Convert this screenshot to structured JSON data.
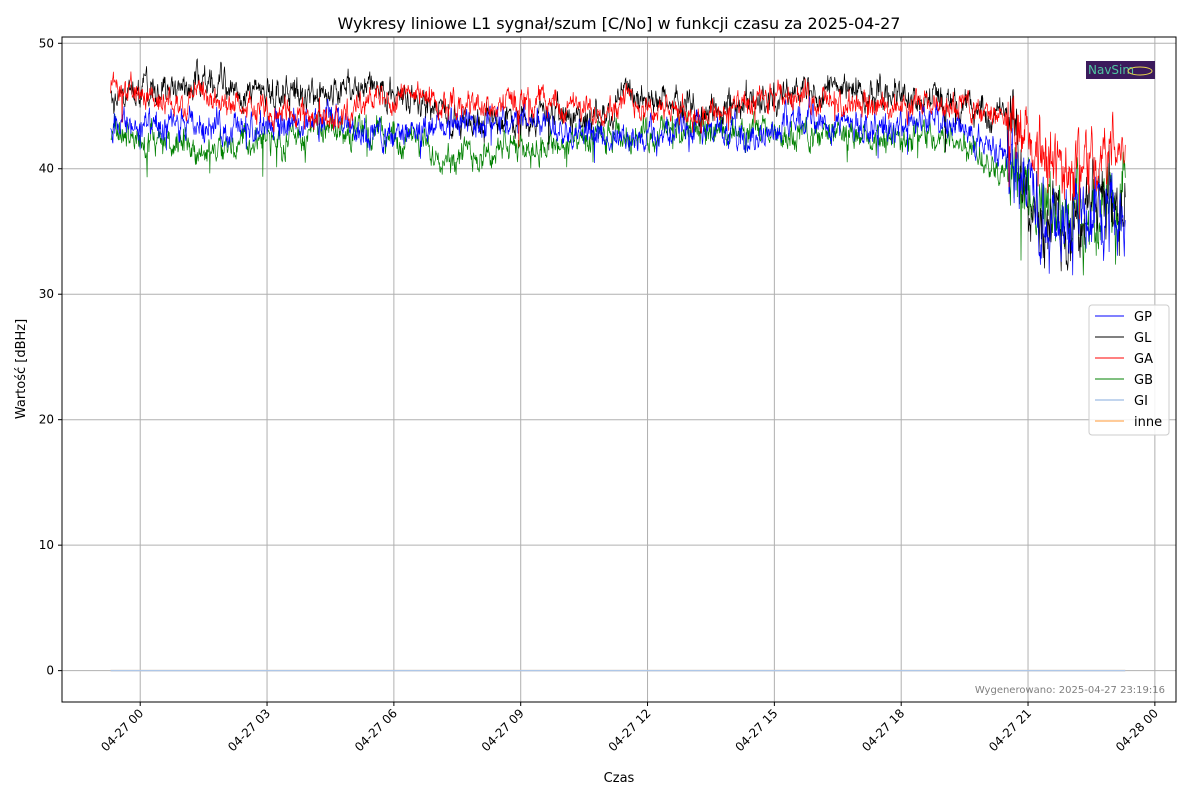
{
  "chart_data": {
    "type": "line",
    "title": "Wykresy liniowe L1 sygnał/szum [C/No] w funkcji czasu za 2025-04-27",
    "xlabel": "Czas",
    "ylabel": "Wartość [dBHz]",
    "x_unit": "hours since 2025-04-27 00:00",
    "xlim": [
      -1.85,
      24.5
    ],
    "ylim": [
      -2.5,
      50.5
    ],
    "grid": true,
    "legend_position": "right",
    "x_ticks": [
      {
        "value": 0,
        "label": "04-27 00"
      },
      {
        "value": 3,
        "label": "04-27 03"
      },
      {
        "value": 6,
        "label": "04-27 06"
      },
      {
        "value": 9,
        "label": "04-27 09"
      },
      {
        "value": 12,
        "label": "04-27 12"
      },
      {
        "value": 15,
        "label": "04-27 15"
      },
      {
        "value": 18,
        "label": "04-27 18"
      },
      {
        "value": 21,
        "label": "04-27 21"
      },
      {
        "value": 24,
        "label": "04-28 00"
      }
    ],
    "y_ticks": [
      {
        "value": 0,
        "label": "0"
      },
      {
        "value": 10,
        "label": "10"
      },
      {
        "value": 20,
        "label": "20"
      },
      {
        "value": 30,
        "label": "30"
      },
      {
        "value": 40,
        "label": "40"
      },
      {
        "value": 50,
        "label": "50"
      }
    ],
    "x": [
      -0.7,
      0.5,
      1.5,
      2.5,
      3.5,
      4.5,
      5.5,
      6.5,
      7.5,
      8.5,
      9.5,
      10.5,
      11.5,
      12.5,
      13.5,
      14.5,
      15.5,
      16.5,
      17.5,
      18.5,
      19.5,
      20.5,
      21.5,
      22.5,
      23.3
    ],
    "series": [
      {
        "name": "GP",
        "color": "#0000ff",
        "noise": 0.9,
        "values": [
          44,
          43,
          43.5,
          43,
          43.5,
          44,
          42.5,
          43,
          43.5,
          44,
          44,
          43,
          42,
          43,
          43,
          42.5,
          44,
          44,
          43,
          44,
          43,
          41,
          36,
          37,
          38
        ]
      },
      {
        "name": "GL",
        "color": "#000000",
        "noise": 0.9,
        "values": [
          45.5,
          46.5,
          47,
          46.5,
          46,
          46,
          46.5,
          45.5,
          44,
          44,
          44.5,
          44,
          45.5,
          45.5,
          44.5,
          45.5,
          46,
          46.5,
          46,
          45.5,
          45,
          44,
          35,
          37,
          38
        ]
      },
      {
        "name": "GA",
        "color": "#ff0000",
        "noise": 0.8,
        "values": [
          46.5,
          45.5,
          45.5,
          45,
          44.5,
          44,
          45.5,
          46,
          45,
          45,
          45.5,
          44.5,
          45.5,
          44.5,
          44.5,
          45,
          46,
          45,
          45,
          45,
          45,
          44,
          40,
          41,
          42
        ]
      },
      {
        "name": "GB",
        "color": "#008000",
        "noise": 0.9,
        "values": [
          43,
          42,
          41.5,
          42,
          42.5,
          43,
          43,
          42,
          41,
          41.5,
          42,
          42,
          42.5,
          43,
          43,
          43,
          42.5,
          43,
          42,
          43,
          42,
          40,
          36,
          36,
          37
        ]
      },
      {
        "name": "GI",
        "color": "#aec7e8",
        "noise": 0,
        "values": [
          0,
          0,
          0,
          0,
          0,
          0,
          0,
          0,
          0,
          0,
          0,
          0,
          0,
          0,
          0,
          0,
          0,
          0,
          0,
          0,
          0,
          0,
          0,
          0,
          0
        ]
      },
      {
        "name": "inne",
        "color": "#ffbb78",
        "noise": 0,
        "values": [
          0,
          0,
          0,
          0,
          0,
          0,
          0,
          0,
          0,
          0,
          0,
          0,
          0,
          0,
          0,
          0,
          0,
          0,
          0,
          0,
          0,
          0,
          0,
          0,
          0
        ]
      }
    ]
  },
  "footer": "Wygenerowano: 2025-04-27 23:19:16",
  "logo": {
    "text": "NavSim",
    "bg": "#3b1a5c",
    "fg": "#4fc3a1"
  }
}
